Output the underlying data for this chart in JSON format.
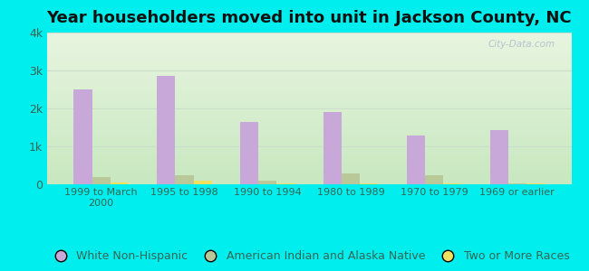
{
  "title": "Year householders moved into unit in Jackson County, NC",
  "categories": [
    "1999 to March\n2000",
    "1995 to 1998",
    "1990 to 1994",
    "1980 to 1989",
    "1970 to 1979",
    "1969 or earlier"
  ],
  "series": {
    "White Non-Hispanic": [
      2500,
      2850,
      1650,
      1900,
      1280,
      1430
    ],
    "American Indian and Alaska Native": [
      195,
      240,
      90,
      295,
      250,
      20
    ],
    "Two or More Races": [
      55,
      95,
      30,
      25,
      15,
      20
    ]
  },
  "colors": {
    "White Non-Hispanic": "#c8a8d8",
    "American Indian and Alaska Native": "#b8c898",
    "Two or More Races": "#f0e060"
  },
  "ylim": [
    0,
    4000
  ],
  "yticks": [
    0,
    1000,
    2000,
    3000,
    4000
  ],
  "ytick_labels": [
    "0",
    "1k",
    "2k",
    "3k",
    "4k"
  ],
  "background_color": "#00eeee",
  "bar_width": 0.22,
  "title_fontsize": 13,
  "legend_fontsize": 9,
  "grid_color": "#ccddcc",
  "tick_color": "#336655",
  "watermark": "City-Data.com"
}
